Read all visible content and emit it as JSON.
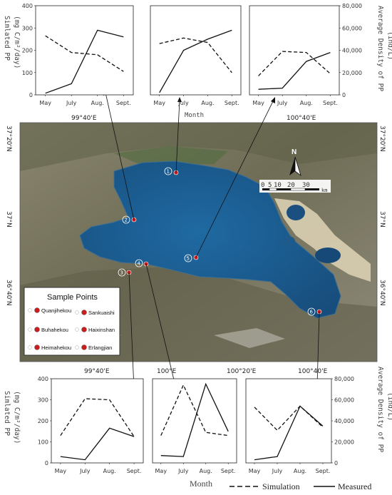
{
  "map": {
    "top_lon_labels": [
      "99°40'E",
      "100°40'E"
    ],
    "bottom_lon_labels": [
      "99°40'E",
      "100°E",
      "100°20'E",
      "100°40'E"
    ],
    "left_lat_labels": [
      "37°20'N",
      "37°N",
      "36°40'N"
    ],
    "right_lat_labels": [
      "37°20'N",
      "37°N",
      "36°40'N"
    ],
    "north_label": "N",
    "scale_ticks": [
      "0",
      "5",
      "10",
      "20",
      "30"
    ],
    "scale_unit": "km",
    "sample_points_title": "Sample Points",
    "sample_points": [
      {
        "num": "1",
        "name": "Quanjihekou"
      },
      {
        "num": "2",
        "name": "Buhahekou"
      },
      {
        "num": "3",
        "name": "Heimahekou"
      },
      {
        "num": "4",
        "name": "Sankuaishi"
      },
      {
        "num": "5",
        "name": "Haixinshan"
      },
      {
        "num": "6",
        "name": "Erlangjian"
      }
    ],
    "colors": {
      "lake": "#1f5f96",
      "point": "#c81e1e",
      "land": "#7d7a62"
    }
  },
  "axis_text": {
    "left_ylabel": "Simlated PP",
    "left_ylabel_units": "(mg C/m²/day)",
    "right_ylabel": "Average Density of PP",
    "right_ylabel_units": "(ind/L)",
    "xlabel": "Month",
    "left_ticks": [
      "0",
      "100",
      "200",
      "300",
      "400"
    ],
    "right_ticks": [
      "0",
      "20,000",
      "40,000",
      "60,000",
      "80,000"
    ]
  },
  "legend": {
    "simulation": "Simulation",
    "measured": "Measured"
  },
  "chart_data": [
    {
      "type": "line",
      "point": "1",
      "categories": [
        "May",
        "July",
        "Aug.",
        "Sept."
      ],
      "ylim_left": [
        0,
        400
      ],
      "ylim_right": [
        0,
        80000
      ],
      "series": [
        {
          "name": "Simulation",
          "axis": "left",
          "values": [
            265,
            190,
            180,
            105
          ]
        },
        {
          "name": "Measured",
          "axis": "right",
          "values": [
            1500,
            10000,
            58000,
            52000
          ]
        }
      ]
    },
    {
      "type": "line",
      "point": "2",
      "categories": [
        "May",
        "July",
        "Aug.",
        "Sept."
      ],
      "ylim_left": [
        0,
        400
      ],
      "ylim_right": [
        0,
        80000
      ],
      "series": [
        {
          "name": "Simulation",
          "axis": "left",
          "values": [
            230,
            255,
            235,
            100
          ]
        },
        {
          "name": "Measured",
          "axis": "right",
          "values": [
            2000,
            40000,
            50000,
            58000
          ]
        }
      ]
    },
    {
      "type": "line",
      "point": "5",
      "categories": [
        "May",
        "July",
        "Aug.",
        "Sept."
      ],
      "ylim_left": [
        0,
        400
      ],
      "ylim_right": [
        0,
        80000
      ],
      "series": [
        {
          "name": "Simulation",
          "axis": "left",
          "values": [
            85,
            195,
            190,
            95
          ]
        },
        {
          "name": "Measured",
          "axis": "right",
          "values": [
            5000,
            6000,
            30000,
            38000
          ]
        }
      ]
    },
    {
      "type": "line",
      "point": "3",
      "categories": [
        "May",
        "July",
        "Aug.",
        "Sept."
      ],
      "ylim_left": [
        0,
        400
      ],
      "ylim_right": [
        0,
        80000
      ],
      "series": [
        {
          "name": "Simulation",
          "axis": "left",
          "values": [
            130,
            305,
            300,
            125
          ]
        },
        {
          "name": "Measured",
          "axis": "right",
          "values": [
            6000,
            3000,
            33000,
            25000
          ]
        }
      ]
    },
    {
      "type": "line",
      "point": "4",
      "categories": [
        "May",
        "July",
        "Aug.",
        "Sept."
      ],
      "ylim_left": [
        0,
        400
      ],
      "ylim_right": [
        0,
        80000
      ],
      "series": [
        {
          "name": "Simulation",
          "axis": "left",
          "values": [
            130,
            370,
            145,
            130
          ]
        },
        {
          "name": "Measured",
          "axis": "right",
          "values": [
            7000,
            6000,
            75000,
            30000
          ]
        }
      ]
    },
    {
      "type": "line",
      "point": "6",
      "categories": [
        "May",
        "July",
        "Aug.",
        "Sept."
      ],
      "ylim_left": [
        0,
        400
      ],
      "ylim_right": [
        0,
        80000
      ],
      "series": [
        {
          "name": "Simulation",
          "axis": "left",
          "values": [
            265,
            155,
            270,
            170
          ]
        },
        {
          "name": "Measured",
          "axis": "right",
          "values": [
            3000,
            6000,
            54000,
            35000
          ]
        }
      ]
    }
  ]
}
